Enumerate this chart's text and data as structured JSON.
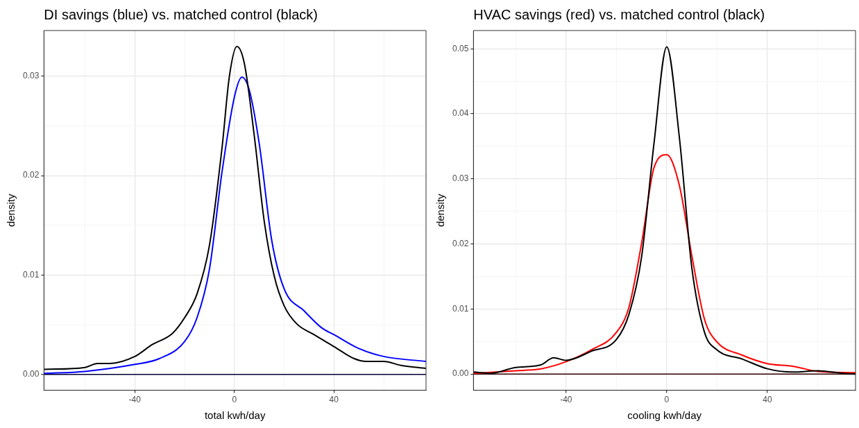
{
  "chart_data": [
    {
      "type": "line",
      "title": "DI savings (blue) vs. matched control (black)",
      "xlabel": "total kwh/day",
      "ylabel": "density",
      "xlim": [
        -76.5,
        77
      ],
      "ylim": [
        -0.0016,
        0.0346
      ],
      "xticks": [
        {
          "value": -60,
          "label": null
        },
        -40,
        {
          "value": -20,
          "label": null
        },
        0,
        {
          "value": 20,
          "label": null
        },
        40,
        {
          "value": 60,
          "label": null
        }
      ],
      "yticks": [
        {
          "value": 0,
          "label": "0.00"
        },
        {
          "value": 0.005,
          "label": null
        },
        0.01,
        {
          "value": 0.015,
          "label": null
        },
        0.02,
        {
          "value": 0.025,
          "label": null
        },
        0.03
      ],
      "grid": true,
      "marker": "none",
      "line_style": "solid",
      "ref_lines": [
        {
          "axis": "y",
          "value": 0,
          "color": "#000033"
        }
      ],
      "series": [
        {
          "color": "#000000",
          "x": [
            -76.5,
            -60,
            -55,
            -50,
            -40,
            -33,
            -25,
            -20,
            -15,
            -10,
            -5,
            -2,
            1,
            4,
            8,
            12,
            16,
            20,
            25,
            32,
            40,
            48,
            53,
            60,
            67,
            77
          ],
          "values": [
            0.0005,
            0.0007,
            0.0011,
            0.0011,
            0.0018,
            0.003,
            0.0041,
            0.0057,
            0.0081,
            0.013,
            0.0227,
            0.03,
            0.033,
            0.0313,
            0.024,
            0.0154,
            0.0099,
            0.0069,
            0.0051,
            0.004,
            0.0028,
            0.0016,
            0.0013,
            0.0013,
            0.0009,
            0.0006
          ]
        },
        {
          "color": "#0000ff",
          "x": [
            -76.5,
            -60,
            -40,
            -30,
            -20,
            -15,
            -10,
            -5,
            0,
            3,
            6,
            10,
            15,
            20,
            28,
            35,
            40,
            50,
            60,
            77
          ],
          "values": [
            0.0001,
            0.0003,
            0.001,
            0.0016,
            0.0033,
            0.0057,
            0.0106,
            0.0203,
            0.0279,
            0.0299,
            0.0286,
            0.0232,
            0.0135,
            0.0086,
            0.0064,
            0.0047,
            0.004,
            0.0026,
            0.0018,
            0.0013
          ]
        }
      ]
    },
    {
      "type": "line",
      "title": "HVAC savings (red) vs. matched control (black)",
      "xlabel": "cooling kwh/day",
      "ylabel": "density",
      "xlim": [
        -76.8,
        75
      ],
      "ylim": [
        -0.0025,
        0.0528
      ],
      "xticks": [
        {
          "value": -60,
          "label": null
        },
        -40,
        {
          "value": -20,
          "label": null
        },
        0,
        {
          "value": 20,
          "label": null
        },
        40,
        {
          "value": 60,
          "label": null
        }
      ],
      "yticks": [
        {
          "value": 0,
          "label": "0.00"
        },
        {
          "value": 0.005,
          "label": null
        },
        0.01,
        {
          "value": 0.015,
          "label": null
        },
        0.02,
        {
          "value": 0.025,
          "label": null
        },
        0.03,
        {
          "value": 0.035,
          "label": null
        },
        0.04,
        {
          "value": 0.045,
          "label": null
        },
        0.05
      ],
      "grid": true,
      "marker": "none",
      "line_style": "solid",
      "ref_lines": [
        {
          "axis": "y",
          "value": 0,
          "color": "#330000"
        }
      ],
      "series": [
        {
          "color": "#000000",
          "x": [
            -76.8,
            -70,
            -60,
            -50,
            -45,
            -40,
            -30,
            -20,
            -15,
            -10,
            -5,
            0,
            5,
            10,
            15,
            20,
            30,
            40,
            50,
            60,
            70,
            75
          ],
          "values": [
            0.0003,
            0.0001,
            0.001,
            0.0014,
            0.0025,
            0.0021,
            0.0035,
            0.0053,
            0.0092,
            0.018,
            0.0357,
            0.0503,
            0.0364,
            0.0162,
            0.0064,
            0.0037,
            0.0023,
            0.0008,
            0.0003,
            0.0005,
            0.0001,
            0
          ]
        },
        {
          "color": "#ff0000",
          "x": [
            -76.8,
            -60,
            -50,
            -40,
            -30,
            -20,
            -15,
            -10,
            -5,
            0,
            5,
            10,
            15,
            20,
            30,
            40,
            50,
            60,
            75
          ],
          "values": [
            0.0001,
            0.0005,
            0.0008,
            0.0019,
            0.0037,
            0.0064,
            0.0103,
            0.0201,
            0.0318,
            0.0337,
            0.029,
            0.0181,
            0.0084,
            0.0049,
            0.0029,
            0.0016,
            0.0012,
            0.0004,
            0.0002
          ]
        }
      ]
    }
  ]
}
